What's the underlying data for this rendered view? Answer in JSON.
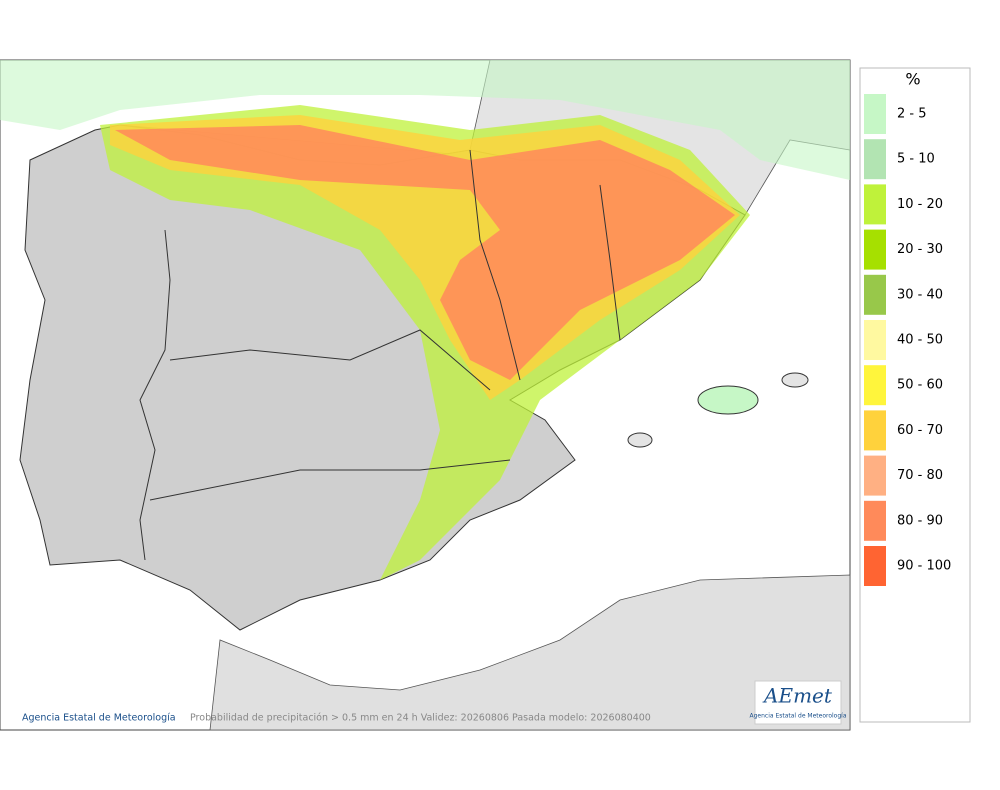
{
  "legend": {
    "title": "%",
    "items": [
      {
        "label": "2 - 5",
        "color": "#c6f7c6"
      },
      {
        "label": "5 - 10",
        "color": "#b2e4b2"
      },
      {
        "label": "10 - 20",
        "color": "#bff23a"
      },
      {
        "label": "20 - 30",
        "color": "#a6e000"
      },
      {
        "label": "30 - 40",
        "color": "#98c84a"
      },
      {
        "label": "40 - 50",
        "color": "#fff9a0"
      },
      {
        "label": "50 - 60",
        "color": "#fff53c"
      },
      {
        "label": "60 - 70",
        "color": "#ffd23c"
      },
      {
        "label": "70 - 80",
        "color": "#ffb083"
      },
      {
        "label": "80 - 90",
        "color": "#ff8a5a"
      },
      {
        "label": "90 - 100",
        "color": "#ff6432"
      }
    ]
  },
  "footer": {
    "credit": "Agencia Estatal de Meteorología",
    "caption": "Probabilidad de precipitación > 0.5 mm en 24 h Validez: 20260806 Pasada modelo: 2026080400"
  },
  "logo": {
    "text": "AEmet",
    "subtitle": "Agencia Estatal de Meteorología"
  }
}
